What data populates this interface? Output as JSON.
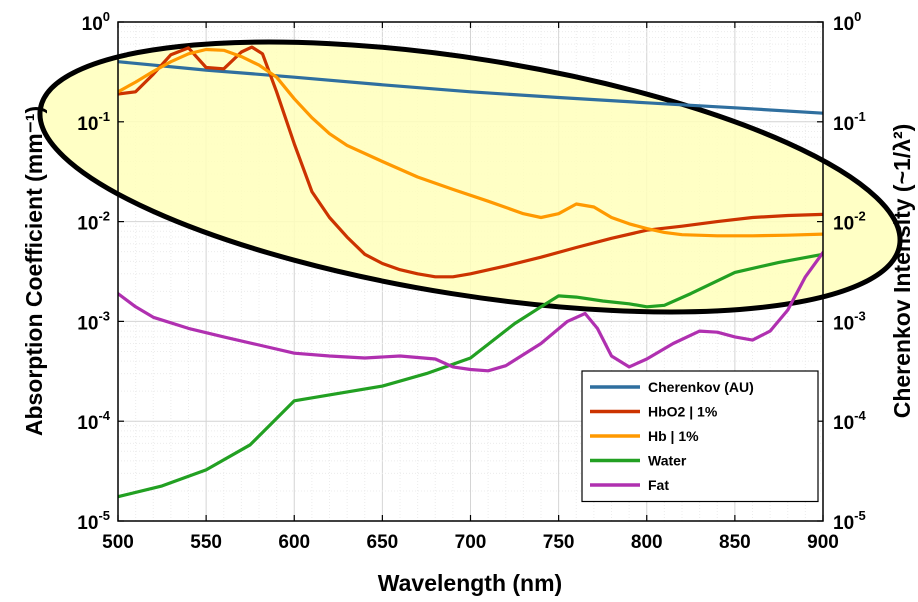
{
  "chart_data": {
    "type": "line",
    "xlabel": "Wavelength (nm)",
    "ylabel": "Absorption Coefficient (mm⁻¹)",
    "y2label": "Cherenkov Intensity (~1/λ²)",
    "xlim": [
      500,
      900
    ],
    "ylim": [
      1e-05,
      1
    ],
    "yscale": "log",
    "grid": true,
    "legend_position": "bottom-right",
    "x_ticks": [
      "500",
      "550",
      "600",
      "650",
      "700",
      "750",
      "800",
      "850",
      "900"
    ],
    "y_ticks": [
      {
        "base": "10",
        "exp": "-5"
      },
      {
        "base": "10",
        "exp": "-4"
      },
      {
        "base": "10",
        "exp": "-3"
      },
      {
        "base": "10",
        "exp": "-2"
      },
      {
        "base": "10",
        "exp": "-1"
      },
      {
        "base": "10",
        "exp": "0"
      }
    ],
    "series": [
      {
        "name": "Cherenkov (AU)",
        "color": "#2f6f9f",
        "x": [
          500,
          550,
          600,
          650,
          700,
          750,
          800,
          850,
          900
        ],
        "y": [
          0.4,
          0.33,
          0.28,
          0.235,
          0.2,
          0.175,
          0.155,
          0.138,
          0.122
        ]
      },
      {
        "name": "HbO2 | 1%",
        "color": "#cc3300",
        "x": [
          500,
          510,
          520,
          530,
          540,
          550,
          560,
          570,
          576,
          582,
          590,
          600,
          610,
          620,
          630,
          640,
          650,
          660,
          670,
          680,
          690,
          700,
          720,
          740,
          760,
          780,
          800,
          820,
          840,
          860,
          880,
          900
        ],
        "y": [
          0.19,
          0.2,
          0.3,
          0.47,
          0.55,
          0.35,
          0.34,
          0.5,
          0.56,
          0.48,
          0.2,
          0.06,
          0.02,
          0.011,
          0.007,
          0.0047,
          0.0038,
          0.0033,
          0.003,
          0.0028,
          0.0028,
          0.003,
          0.0036,
          0.0044,
          0.0055,
          0.0068,
          0.0082,
          0.009,
          0.01,
          0.011,
          0.0115,
          0.0118
        ]
      },
      {
        "name": "Hb | 1%",
        "color": "#ff9900",
        "x": [
          500,
          510,
          520,
          530,
          540,
          550,
          560,
          570,
          580,
          590,
          600,
          610,
          620,
          630,
          650,
          670,
          690,
          710,
          730,
          740,
          750,
          760,
          770,
          780,
          790,
          800,
          810,
          820,
          840,
          860,
          880,
          900
        ],
        "y": [
          0.2,
          0.25,
          0.32,
          0.4,
          0.48,
          0.53,
          0.52,
          0.45,
          0.37,
          0.28,
          0.17,
          0.11,
          0.076,
          0.058,
          0.04,
          0.028,
          0.021,
          0.016,
          0.012,
          0.011,
          0.012,
          0.015,
          0.014,
          0.011,
          0.0095,
          0.0085,
          0.0078,
          0.0074,
          0.0072,
          0.0072,
          0.0073,
          0.0075
        ]
      },
      {
        "name": "Water",
        "color": "#22a022",
        "x": [
          500,
          525,
          550,
          575,
          600,
          625,
          650,
          675,
          700,
          725,
          740,
          750,
          760,
          775,
          790,
          800,
          810,
          825,
          850,
          875,
          900
        ],
        "y": [
          1.75e-05,
          2.25e-05,
          3.25e-05,
          5.8e-05,
          0.00016,
          0.00019,
          0.000225,
          0.0003,
          0.00043,
          0.00095,
          0.0014,
          0.0018,
          0.00175,
          0.0016,
          0.0015,
          0.0014,
          0.00145,
          0.0019,
          0.0031,
          0.0039,
          0.0047
        ]
      },
      {
        "name": "Fat",
        "color": "#b030b0",
        "x": [
          500,
          510,
          520,
          540,
          560,
          580,
          600,
          620,
          640,
          660,
          680,
          690,
          700,
          710,
          720,
          740,
          755,
          765,
          772,
          780,
          790,
          800,
          815,
          830,
          840,
          850,
          860,
          870,
          880,
          890,
          900
        ],
        "y": [
          0.0019,
          0.0014,
          0.0011,
          0.00085,
          0.0007,
          0.00058,
          0.00048,
          0.00045,
          0.00043,
          0.00045,
          0.00042,
          0.00035,
          0.00033,
          0.00032,
          0.00036,
          0.0006,
          0.001,
          0.0012,
          0.00085,
          0.00045,
          0.00035,
          0.00042,
          0.0006,
          0.0008,
          0.00078,
          0.0007,
          0.00065,
          0.0008,
          0.0013,
          0.0028,
          0.0049
        ]
      }
    ]
  }
}
